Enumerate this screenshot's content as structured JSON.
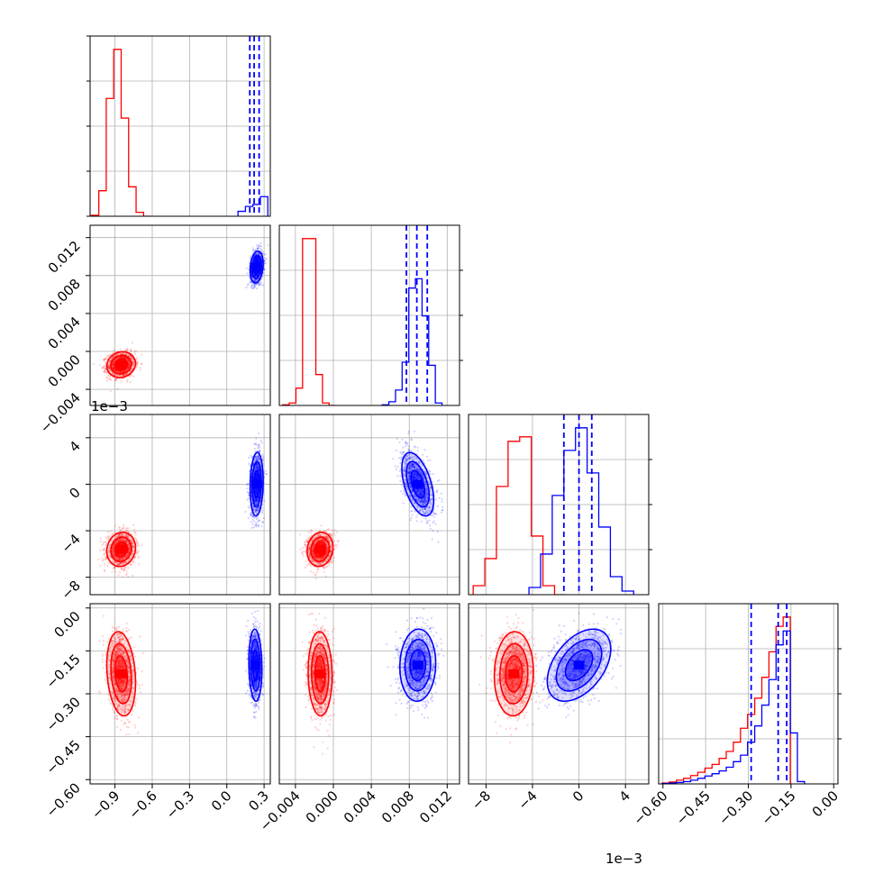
{
  "chart_data": {
    "type": "corner",
    "series": [
      {
        "name": "",
        "color": "#ff0000"
      },
      {
        "name": "",
        "color": "#0000ff"
      }
    ],
    "parameters": [
      {
        "range": [
          -1.1,
          0.35
        ],
        "ticks": [
          -0.9,
          -0.6,
          -0.3,
          0.0,
          0.3
        ],
        "tick_labels": [
          "−0.9",
          "−0.6",
          "−0.3",
          "0.0",
          "0.3"
        ]
      },
      {
        "range": [
          -0.0057,
          0.0133
        ],
        "ticks": [
          -0.004,
          0.0,
          0.004,
          0.008,
          0.012
        ],
        "tick_labels": [
          "−0.004",
          "0.000",
          "0.004",
          "0.008",
          "0.012"
        ]
      },
      {
        "range": [
          -9.5,
          6.0
        ],
        "ticks": [
          -8,
          -4,
          0,
          4
        ],
        "tick_labels": [
          "−8",
          "−4",
          "0",
          "4"
        ],
        "offset_label": "1e−3"
      },
      {
        "range": [
          -0.615,
          0.015
        ],
        "ticks": [
          -0.6,
          -0.45,
          -0.3,
          -0.15,
          0.0
        ],
        "tick_labels": [
          "−0.60",
          "−0.45",
          "−0.30",
          "−0.15",
          "0.00"
        ]
      }
    ],
    "blobs": [
      [
        {
          "cx": -0.85,
          "cy": -0.0014,
          "sx": 0.055,
          "sy": 0.00065,
          "rho": 0.1,
          "n": 1200
        },
        {
          "cx": 0.24,
          "cy": 0.0089,
          "sx": 0.025,
          "sy": 0.0008,
          "rho": 0.2,
          "n": 1200
        }
      ],
      [
        {
          "cx": -0.85,
          "cy": -5.6,
          "sx": 0.055,
          "sy": 0.7,
          "rho": 0.1,
          "n": 1200
        },
        {
          "cx": 0.24,
          "cy": 0.0,
          "sx": 0.025,
          "sy": 1.3,
          "rho": 0.1,
          "n": 1200
        }
      ],
      [
        {
          "cx": -0.0014,
          "cy": -5.6,
          "sx": 0.00065,
          "sy": 0.7,
          "rho": 0.1,
          "n": 1200
        },
        {
          "cx": 0.0089,
          "cy": 0.0,
          "sx": 0.0008,
          "sy": 1.3,
          "rho": -0.5,
          "n": 1200
        }
      ],
      [
        {
          "cx": -0.85,
          "cy": -0.23,
          "sx": 0.055,
          "sy": 0.07,
          "rho": -0.2,
          "n": 1200
        },
        {
          "cx": 0.23,
          "cy": -0.2,
          "sx": 0.025,
          "sy": 0.06,
          "rho": -0.1,
          "n": 1200
        }
      ],
      [
        {
          "cx": -0.0014,
          "cy": -0.23,
          "sx": 0.0006,
          "sy": 0.07,
          "rho": -0.05,
          "n": 1200
        },
        {
          "cx": 0.0089,
          "cy": -0.2,
          "sx": 0.0009,
          "sy": 0.06,
          "rho": 0.05,
          "n": 1200
        }
      ],
      [
        {
          "cx": -5.6,
          "cy": -0.23,
          "sx": 0.8,
          "sy": 0.07,
          "rho": 0.05,
          "n": 1200
        },
        {
          "cx": 0.0,
          "cy": -0.2,
          "sx": 1.3,
          "sy": 0.06,
          "rho": 0.45,
          "n": 1200
        }
      ]
    ],
    "histograms": [
      {
        "red": {
          "x": [
            -1.06,
            -1.0,
            -0.94,
            -0.88,
            -0.82,
            -0.76,
            -0.7,
            -0.64
          ],
          "values": [
            1,
            26,
            120,
            170,
            100,
            30,
            4,
            0
          ]
        },
        "blue": {
          "x": [
            0.12,
            0.18,
            0.24,
            0.3
          ],
          "values": [
            5,
            10,
            12,
            20
          ]
        },
        "blue_quantiles": [
          0.185,
          0.22,
          0.26
        ]
      },
      {
        "red": {
          "x": [
            -0.005,
            -0.0043,
            -0.0036,
            -0.0029,
            -0.0022,
            -0.0015,
            -0.0008,
            -0.0001
          ],
          "values": [
            1,
            4,
            28,
            270,
            270,
            50,
            4,
            0
          ]
        },
        "blue": {
          "x": [
            0.0055,
            0.0062,
            0.0069,
            0.0076,
            0.0083,
            0.009,
            0.0097,
            0.0104,
            0.0111
          ],
          "values": [
            1,
            6,
            25,
            70,
            190,
            205,
            145,
            65,
            4
          ]
        },
        "blue_quantiles": [
          0.0077,
          0.0088,
          0.0099
        ]
      },
      {
        "red": {
          "x": [
            -8.6,
            -7.6,
            -6.6,
            -5.6,
            -4.6,
            -3.6,
            -2.6,
            -1.6
          ],
          "values": [
            10,
            40,
            120,
            170,
            175,
            65,
            10,
            0
          ]
        },
        "blue": {
          "x": [
            -3.8,
            -2.8,
            -1.8,
            -0.8,
            0.2,
            1.2,
            2.2,
            3.2,
            4.2
          ],
          "values": [
            8,
            45,
            110,
            160,
            185,
            135,
            75,
            20,
            4
          ]
        },
        "blue_quantiles": [
          -1.3,
          0.0,
          1.1
        ]
      },
      {
        "red": {
          "x": [
            -0.59,
            -0.565,
            -0.54,
            -0.515,
            -0.49,
            -0.465,
            -0.44,
            -0.415,
            -0.39,
            -0.365,
            -0.34,
            -0.315,
            -0.29,
            -0.265,
            -0.24,
            -0.215,
            -0.19,
            -0.165
          ],
          "values": [
            2,
            4,
            8,
            12,
            18,
            25,
            34,
            42,
            55,
            70,
            90,
            120,
            150,
            185,
            230,
            285,
            340,
            360
          ]
        },
        "blue": {
          "x": [
            -0.59,
            -0.565,
            -0.54,
            -0.515,
            -0.49,
            -0.465,
            -0.44,
            -0.415,
            -0.39,
            -0.365,
            -0.34,
            -0.315,
            -0.29,
            -0.265,
            -0.24,
            -0.215,
            -0.19,
            -0.165,
            -0.14,
            -0.115
          ],
          "values": [
            1,
            2,
            3,
            5,
            8,
            12,
            17,
            22,
            28,
            36,
            48,
            62,
            90,
            125,
            170,
            225,
            300,
            330,
            110,
            5
          ]
        },
        "blue_quantiles": [
          -0.29,
          -0.195,
          -0.165
        ]
      }
    ]
  }
}
